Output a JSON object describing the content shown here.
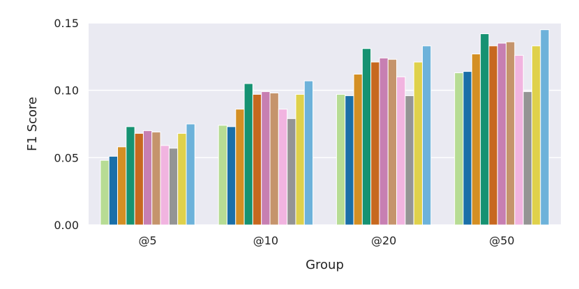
{
  "chart_data": {
    "type": "bar",
    "xlabel": "Group",
    "ylabel": "F1 Score",
    "ylim": [
      0,
      0.15
    ],
    "yticks": [
      "0.00",
      "0.05",
      "0.10",
      "0.15"
    ],
    "categories": [
      "@5",
      "@10",
      "@20",
      "@50"
    ],
    "grid": true,
    "background_color": "#eaeaf2",
    "series": [
      {
        "color": "#b7dc94",
        "values": [
          0.048,
          0.074,
          0.097,
          0.113
        ]
      },
      {
        "color": "#1a6fa8",
        "values": [
          0.051,
          0.073,
          0.096,
          0.114
        ]
      },
      {
        "color": "#d48f24",
        "values": [
          0.058,
          0.086,
          0.112,
          0.127
        ]
      },
      {
        "color": "#169272",
        "values": [
          0.073,
          0.105,
          0.131,
          0.142
        ]
      },
      {
        "color": "#c7681f",
        "values": [
          0.068,
          0.097,
          0.121,
          0.133
        ]
      },
      {
        "color": "#c77fb2",
        "values": [
          0.07,
          0.099,
          0.124,
          0.135
        ]
      },
      {
        "color": "#c5946c",
        "values": [
          0.069,
          0.098,
          0.123,
          0.136
        ]
      },
      {
        "color": "#f1b4e0",
        "values": [
          0.059,
          0.086,
          0.11,
          0.126
        ]
      },
      {
        "color": "#949494",
        "values": [
          0.057,
          0.079,
          0.096,
          0.099
        ]
      },
      {
        "color": "#dfd14b",
        "values": [
          0.068,
          0.097,
          0.121,
          0.133
        ]
      },
      {
        "color": "#6db2da",
        "values": [
          0.075,
          0.107,
          0.133,
          0.145
        ]
      }
    ]
  }
}
